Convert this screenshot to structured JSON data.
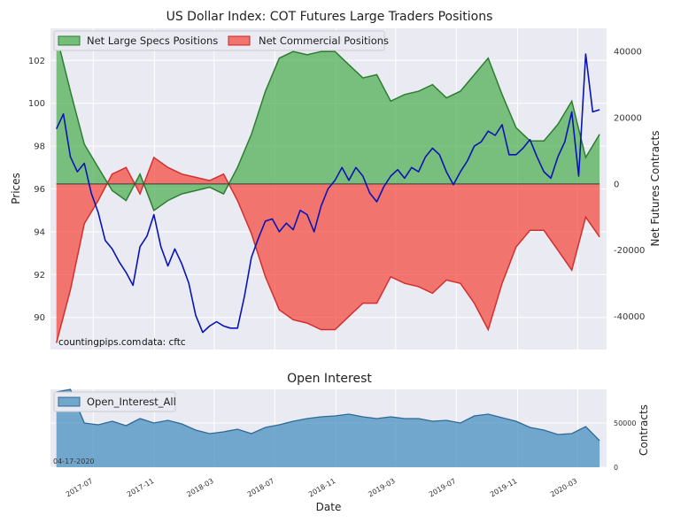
{
  "chart_data": [
    {
      "type": "line",
      "title": "US Dollar Index: COT Futures Large Traders Positions",
      "xlabel": "",
      "ylabel": "Prices",
      "y2label": "Net Futures Contracts",
      "ylim": [
        88.5,
        103.5
      ],
      "y2lim": [
        -50000,
        47000
      ],
      "yticks": [
        "90",
        "92",
        "94",
        "96",
        "98",
        "100",
        "102"
      ],
      "y2ticks": [
        "-40000",
        "-20000",
        "0",
        "20000",
        "40000"
      ],
      "legend_position": "top-left",
      "annotations": [
        "countingpips.com",
        "data: cftc"
      ],
      "series": [
        {
          "name": "Net Large Specs Positions",
          "kind": "area",
          "axis": "right",
          "color": "#4caf50",
          "x": [
            "2017-04-18",
            "2017-05-16",
            "2017-06-13",
            "2017-07-11",
            "2017-08-08",
            "2017-09-05",
            "2017-10-03",
            "2017-10-31",
            "2017-11-28",
            "2017-12-26",
            "2018-01-23",
            "2018-02-20",
            "2018-03-20",
            "2018-04-17",
            "2018-05-15",
            "2018-06-12",
            "2018-07-10",
            "2018-08-07",
            "2018-09-04",
            "2018-10-02",
            "2018-10-30",
            "2018-11-27",
            "2018-12-25",
            "2019-01-22",
            "2019-02-19",
            "2019-03-19",
            "2019-04-16",
            "2019-05-14",
            "2019-06-11",
            "2019-07-09",
            "2019-08-06",
            "2019-09-03",
            "2019-10-01",
            "2019-10-29",
            "2019-11-26",
            "2019-12-24",
            "2020-01-21",
            "2020-02-18",
            "2020-03-17",
            "2020-04-14"
          ],
          "values": [
            45000,
            28000,
            12000,
            5000,
            -2000,
            -5000,
            3000,
            -8000,
            -5000,
            -3000,
            -2000,
            -1000,
            -3000,
            5000,
            15000,
            28000,
            38000,
            40000,
            39000,
            40000,
            40000,
            36000,
            32000,
            33000,
            25000,
            27000,
            28000,
            30000,
            26000,
            28000,
            33000,
            38000,
            27000,
            17000,
            13000,
            13000,
            18000,
            25000,
            8000,
            15000
          ]
        },
        {
          "name": "Net Commercial Positions",
          "kind": "area",
          "axis": "right",
          "color": "#f44336",
          "x": [
            "2017-04-18",
            "2017-05-16",
            "2017-06-13",
            "2017-07-11",
            "2017-08-08",
            "2017-09-05",
            "2017-10-03",
            "2017-10-31",
            "2017-11-28",
            "2017-12-26",
            "2018-01-23",
            "2018-02-20",
            "2018-03-20",
            "2018-04-17",
            "2018-05-15",
            "2018-06-12",
            "2018-07-10",
            "2018-08-07",
            "2018-09-04",
            "2018-10-02",
            "2018-10-30",
            "2018-11-27",
            "2018-12-25",
            "2019-01-22",
            "2019-02-19",
            "2019-03-19",
            "2019-04-16",
            "2019-05-14",
            "2019-06-11",
            "2019-07-09",
            "2019-08-06",
            "2019-09-03",
            "2019-10-01",
            "2019-10-29",
            "2019-11-26",
            "2019-12-24",
            "2020-01-21",
            "2020-02-18",
            "2020-03-17",
            "2020-04-14"
          ],
          "values": [
            -48000,
            -32000,
            -12000,
            -5000,
            3000,
            5000,
            -3000,
            8000,
            5000,
            3000,
            2000,
            1000,
            3000,
            -5000,
            -15000,
            -28000,
            -38000,
            -41000,
            -42000,
            -44000,
            -44000,
            -40000,
            -36000,
            -36000,
            -28000,
            -30000,
            -31000,
            -33000,
            -29000,
            -30000,
            -36000,
            -44000,
            -30000,
            -19000,
            -14000,
            -14000,
            -20000,
            -26000,
            -10000,
            -16000
          ]
        },
        {
          "name": "US Dollar Index",
          "kind": "line",
          "axis": "left",
          "color": "#0a14b4",
          "x": [
            "2017-04-18",
            "2017-05-02",
            "2017-05-16",
            "2017-05-30",
            "2017-06-13",
            "2017-06-27",
            "2017-07-11",
            "2017-07-25",
            "2017-08-08",
            "2017-08-22",
            "2017-09-05",
            "2017-09-19",
            "2017-10-03",
            "2017-10-17",
            "2017-10-31",
            "2017-11-14",
            "2017-11-28",
            "2017-12-12",
            "2017-12-26",
            "2018-01-09",
            "2018-01-23",
            "2018-02-06",
            "2018-02-20",
            "2018-03-06",
            "2018-03-20",
            "2018-04-03",
            "2018-04-17",
            "2018-05-01",
            "2018-05-15",
            "2018-05-29",
            "2018-06-12",
            "2018-06-26",
            "2018-07-10",
            "2018-07-24",
            "2018-08-07",
            "2018-08-21",
            "2018-09-04",
            "2018-09-18",
            "2018-10-02",
            "2018-10-16",
            "2018-10-30",
            "2018-11-13",
            "2018-11-27",
            "2018-12-11",
            "2018-12-25",
            "2019-01-08",
            "2019-01-22",
            "2019-02-05",
            "2019-02-19",
            "2019-03-05",
            "2019-03-19",
            "2019-04-02",
            "2019-04-16",
            "2019-04-30",
            "2019-05-14",
            "2019-05-28",
            "2019-06-11",
            "2019-06-25",
            "2019-07-09",
            "2019-07-23",
            "2019-08-06",
            "2019-08-20",
            "2019-09-03",
            "2019-09-17",
            "2019-10-01",
            "2019-10-15",
            "2019-10-29",
            "2019-11-12",
            "2019-11-26",
            "2019-12-10",
            "2019-12-24",
            "2020-01-07",
            "2020-01-21",
            "2020-02-04",
            "2020-02-18",
            "2020-03-03",
            "2020-03-17",
            "2020-03-31",
            "2020-04-14"
          ],
          "values": [
            98.8,
            99.5,
            97.5,
            96.8,
            97.2,
            95.8,
            94.9,
            93.6,
            93.2,
            92.6,
            92.1,
            91.5,
            93.3,
            93.8,
            94.8,
            93.3,
            92.4,
            93.2,
            92.5,
            91.6,
            90.1,
            89.3,
            89.6,
            89.8,
            89.6,
            89.5,
            89.5,
            91.0,
            92.8,
            93.7,
            94.5,
            94.6,
            94.0,
            94.4,
            94.1,
            95.0,
            94.8,
            94.0,
            95.2,
            96.0,
            96.4,
            97.0,
            96.4,
            97.0,
            96.6,
            95.8,
            95.4,
            96.1,
            96.6,
            96.9,
            96.5,
            97.0,
            96.8,
            97.5,
            97.9,
            97.6,
            96.8,
            96.2,
            96.8,
            97.3,
            98.0,
            98.2,
            98.7,
            98.5,
            99.0,
            97.6,
            97.6,
            97.9,
            98.3,
            97.5,
            96.8,
            96.5,
            97.5,
            98.2,
            99.6,
            96.6,
            102.3,
            99.6,
            99.7
          ]
        }
      ]
    },
    {
      "type": "area",
      "title": "Open Interest",
      "xlabel": "Date",
      "ylabel": "Contracts",
      "ylim": [
        0,
        88000
      ],
      "yticks": [
        "0",
        "50000"
      ],
      "xticks": [
        "2017-07",
        "2017-11",
        "2018-03",
        "2018-07",
        "2018-11",
        "2019-03",
        "2019-07",
        "2019-11",
        "2020-03"
      ],
      "legend_position": "top-left",
      "annotations": [
        "04-17-2020"
      ],
      "series": [
        {
          "name": "Open_Interest_All",
          "color": "#4a90c0",
          "x": [
            "2017-04-18",
            "2017-05-16",
            "2017-06-13",
            "2017-07-11",
            "2017-08-08",
            "2017-09-05",
            "2017-10-03",
            "2017-10-31",
            "2017-11-28",
            "2017-12-26",
            "2018-01-23",
            "2018-02-20",
            "2018-03-20",
            "2018-04-17",
            "2018-05-15",
            "2018-06-12",
            "2018-07-10",
            "2018-08-07",
            "2018-09-04",
            "2018-10-02",
            "2018-10-30",
            "2018-11-27",
            "2018-12-25",
            "2019-01-22",
            "2019-02-19",
            "2019-03-19",
            "2019-04-16",
            "2019-05-14",
            "2019-06-11",
            "2019-07-09",
            "2019-08-06",
            "2019-09-03",
            "2019-10-01",
            "2019-10-29",
            "2019-11-26",
            "2019-12-24",
            "2020-01-21",
            "2020-02-18",
            "2020-03-17",
            "2020-04-14"
          ],
          "values": [
            85000,
            88000,
            50000,
            48000,
            52000,
            47000,
            55000,
            50000,
            53000,
            49000,
            42000,
            38000,
            40000,
            43000,
            38000,
            45000,
            48000,
            52000,
            55000,
            57000,
            58000,
            60000,
            57000,
            55000,
            57000,
            55000,
            55000,
            52000,
            53000,
            50000,
            58000,
            60000,
            56000,
            52000,
            45000,
            42000,
            37000,
            38000,
            46000,
            30000
          ]
        }
      ]
    }
  ]
}
